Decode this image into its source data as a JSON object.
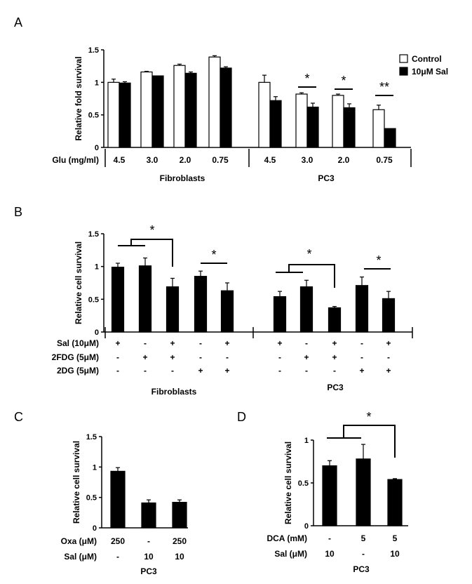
{
  "chart_data": [
    {
      "panel": "A",
      "type": "bar",
      "ylabel": "Relative fold survival",
      "ylim": [
        0,
        1.5
      ],
      "yticks": [
        "0",
        "0.5",
        "1",
        "1.5"
      ],
      "row_label": "Glu (mg/ml)",
      "categories": [
        "4.5",
        "3.0",
        "2.0",
        "0.75",
        "4.5",
        "3.0",
        "2.0",
        "0.75"
      ],
      "groups": [
        "Fibroblasts",
        "PC3"
      ],
      "series": [
        {
          "name": "Control",
          "color": "#ffffff",
          "values": [
            1.0,
            1.16,
            1.26,
            1.39,
            1.0,
            0.82,
            0.8,
            0.58
          ],
          "errors": [
            0.05,
            0.01,
            0.02,
            0.02,
            0.11,
            0.02,
            0.02,
            0.07
          ]
        },
        {
          "name": "10μM Sal",
          "color": "#000000",
          "values": [
            0.99,
            1.1,
            1.14,
            1.22,
            0.72,
            0.62,
            0.61,
            0.29
          ],
          "errors": [
            0.02,
            0.0,
            0.02,
            0.02,
            0.06,
            0.06,
            0.06,
            0.0
          ]
        }
      ],
      "significance": [
        {
          "pair": 5,
          "label": "*"
        },
        {
          "pair": 6,
          "label": "*"
        },
        {
          "pair": 7,
          "label": "**"
        }
      ]
    },
    {
      "panel": "B",
      "type": "bar",
      "ylabel": "Relative cell survival",
      "ylim": [
        0,
        1.5
      ],
      "yticks": [
        "0",
        "0.5",
        "1",
        "1.5"
      ],
      "rows": [
        {
          "label": "Sal (10μM)",
          "values": [
            "+",
            "-",
            "+",
            "-",
            "+",
            "+",
            "-",
            "+",
            "-",
            "+"
          ]
        },
        {
          "label": "2FDG (5μM)",
          "values": [
            "-",
            "+",
            "+",
            "-",
            "-",
            "-",
            "+",
            "+",
            "-",
            "-"
          ]
        },
        {
          "label": "2DG (5μM)",
          "values": [
            "-",
            "-",
            "-",
            "+",
            "+",
            "-",
            "-",
            "-",
            "+",
            "+"
          ]
        }
      ],
      "groups": [
        "Fibroblasts",
        "PC3"
      ],
      "values": [
        0.99,
        1.01,
        0.69,
        0.85,
        0.63,
        0.54,
        0.69,
        0.37,
        0.71,
        0.51
      ],
      "errors": [
        0.06,
        0.12,
        0.13,
        0.08,
        0.12,
        0.08,
        0.1,
        0.02,
        0.13,
        0.11
      ],
      "significance": [
        {
          "label": "*"
        },
        {
          "label": "*"
        },
        {
          "label": "*"
        },
        {
          "label": "*"
        }
      ]
    },
    {
      "panel": "C",
      "type": "bar",
      "ylabel": "Relative cell survival",
      "ylim": [
        0,
        1.5
      ],
      "yticks": [
        "0",
        "0.5",
        "1",
        "1.5"
      ],
      "rows": [
        {
          "label": "Oxa (μM)",
          "values": [
            "250",
            "-",
            "250"
          ]
        },
        {
          "label": "Sal (μM)",
          "values": [
            "-",
            "10",
            "10"
          ]
        }
      ],
      "groups": [
        "PC3"
      ],
      "values": [
        0.93,
        0.41,
        0.42
      ],
      "errors": [
        0.06,
        0.05,
        0.04
      ]
    },
    {
      "panel": "D",
      "type": "bar",
      "ylabel": "Relative cell survival",
      "ylim": [
        0,
        1.0
      ],
      "yticks": [
        "0",
        "0.5",
        "1"
      ],
      "rows": [
        {
          "label": "DCA (mM)",
          "values": [
            "-",
            "5",
            "5"
          ]
        },
        {
          "label": "Sal (μM)",
          "values": [
            "10",
            "-",
            "10"
          ]
        }
      ],
      "groups": [
        "PC3"
      ],
      "values": [
        0.7,
        0.78,
        0.54
      ],
      "errors": [
        0.06,
        0.17,
        0.01
      ],
      "significance": [
        {
          "label": "*"
        }
      ]
    }
  ]
}
